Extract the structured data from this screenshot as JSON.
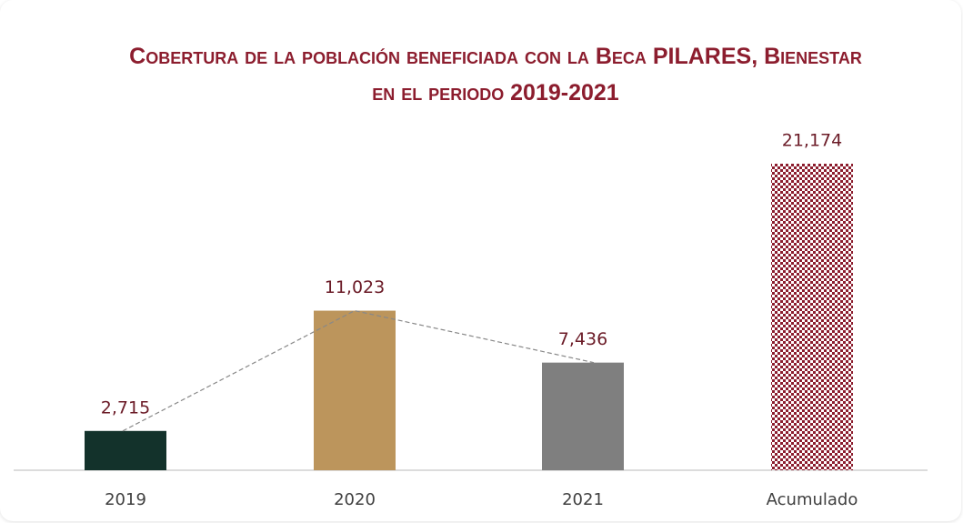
{
  "chart_data": {
    "type": "bar",
    "title": "Cobertura de la población beneficiada con la Beca PILARES, Bienestar en el periodo 2019-2021",
    "categories": [
      "2019",
      "2020",
      "2021",
      "Acumulado"
    ],
    "values": [
      2715,
      11023,
      7436,
      21174
    ],
    "value_labels": [
      "2,715",
      "11,023",
      "7,436",
      "21,174"
    ],
    "colors": [
      "#13322b",
      "#bc955c",
      "#7f7f7f",
      "#8c1d2e"
    ]
  }
}
